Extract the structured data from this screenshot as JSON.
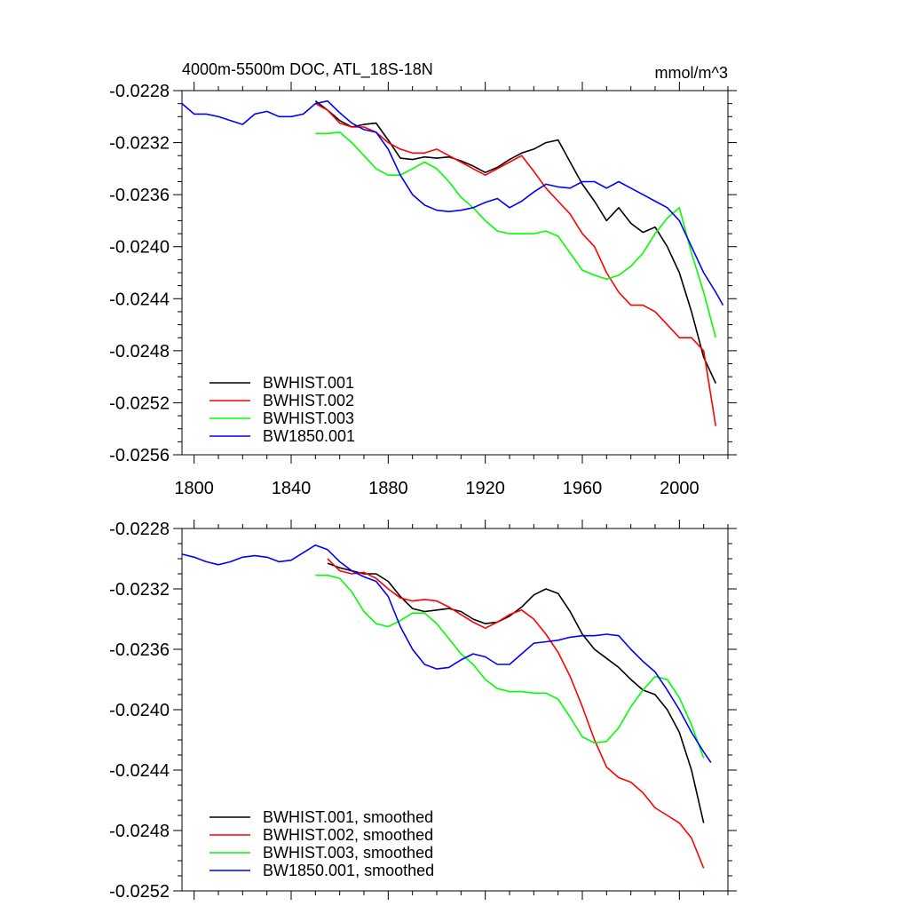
{
  "chart_data": [
    {
      "type": "line",
      "title": "4000m-5500m DOC, ATL_18S-18N",
      "units": "mmol/m^3",
      "xlabel": "",
      "ylabel": "",
      "xlim": [
        1795,
        2020
      ],
      "ylim": [
        -0.0256,
        -0.0228
      ],
      "xticks": [
        1800,
        1840,
        1880,
        1920,
        1960,
        2000
      ],
      "yticks": [
        -0.0228,
        -0.0232,
        -0.0236,
        -0.024,
        -0.0244,
        -0.0248,
        -0.0252,
        -0.0256
      ],
      "ytick_labels": [
        "-0.0228",
        "-0.0232",
        "-0.0236",
        "-0.0240",
        "-0.0244",
        "-0.0248",
        "-0.0252",
        "-0.0256"
      ],
      "legend_position": "bottom-left",
      "series": [
        {
          "name": "BWHIST.001",
          "color": "#000000",
          "x": [
            1850,
            1855,
            1860,
            1865,
            1870,
            1875,
            1880,
            1885,
            1890,
            1895,
            1900,
            1905,
            1910,
            1915,
            1920,
            1925,
            1930,
            1935,
            1940,
            1945,
            1950,
            1955,
            1960,
            1965,
            1970,
            1975,
            1980,
            1985,
            1990,
            1995,
            2000,
            2005,
            2010,
            2015
          ],
          "y": [
            -0.02288,
            -0.02295,
            -0.02303,
            -0.02308,
            -0.02306,
            -0.02305,
            -0.02318,
            -0.02332,
            -0.02333,
            -0.02331,
            -0.02332,
            -0.02331,
            -0.02334,
            -0.02338,
            -0.02343,
            -0.02339,
            -0.02333,
            -0.02328,
            -0.02325,
            -0.0232,
            -0.02318,
            -0.02335,
            -0.02352,
            -0.02365,
            -0.0238,
            -0.0237,
            -0.02382,
            -0.02389,
            -0.02385,
            -0.024,
            -0.0242,
            -0.0245,
            -0.02485,
            -0.02505
          ]
        },
        {
          "name": "BWHIST.002",
          "color": "#ff0000",
          "x": [
            1850,
            1855,
            1860,
            1865,
            1870,
            1875,
            1880,
            1885,
            1890,
            1895,
            1900,
            1905,
            1910,
            1915,
            1920,
            1925,
            1930,
            1935,
            1940,
            1945,
            1950,
            1955,
            1960,
            1965,
            1970,
            1975,
            1980,
            1985,
            1990,
            1995,
            2000,
            2005,
            2010,
            2015
          ],
          "y": [
            -0.0229,
            -0.02295,
            -0.02305,
            -0.02308,
            -0.02308,
            -0.02312,
            -0.0232,
            -0.02325,
            -0.02328,
            -0.02328,
            -0.02325,
            -0.0233,
            -0.02335,
            -0.0234,
            -0.02345,
            -0.0234,
            -0.02335,
            -0.0233,
            -0.02342,
            -0.02355,
            -0.02365,
            -0.02375,
            -0.0239,
            -0.024,
            -0.0242,
            -0.02435,
            -0.02445,
            -0.02445,
            -0.0245,
            -0.0246,
            -0.0247,
            -0.0247,
            -0.0248,
            -0.02538
          ]
        },
        {
          "name": "BWHIST.003",
          "color": "#00ff00",
          "x": [
            1850,
            1855,
            1860,
            1865,
            1870,
            1875,
            1880,
            1885,
            1890,
            1895,
            1900,
            1905,
            1910,
            1915,
            1920,
            1925,
            1930,
            1935,
            1940,
            1945,
            1950,
            1955,
            1960,
            1965,
            1970,
            1975,
            1980,
            1985,
            1990,
            1995,
            2000,
            2005,
            2010,
            2015
          ],
          "y": [
            -0.02313,
            -0.02313,
            -0.02312,
            -0.0232,
            -0.0233,
            -0.0234,
            -0.02345,
            -0.02345,
            -0.0234,
            -0.02335,
            -0.0234,
            -0.0235,
            -0.02362,
            -0.0237,
            -0.0238,
            -0.02388,
            -0.0239,
            -0.0239,
            -0.0239,
            -0.02388,
            -0.02392,
            -0.02405,
            -0.02418,
            -0.02422,
            -0.02425,
            -0.02422,
            -0.02415,
            -0.02405,
            -0.0239,
            -0.02378,
            -0.0237,
            -0.02405,
            -0.02435,
            -0.0247
          ]
        },
        {
          "name": "BW1850.001",
          "color": "#0000ff",
          "x": [
            1795,
            1800,
            1805,
            1810,
            1815,
            1820,
            1825,
            1830,
            1835,
            1840,
            1845,
            1850,
            1855,
            1860,
            1865,
            1870,
            1875,
            1880,
            1885,
            1890,
            1895,
            1900,
            1905,
            1910,
            1915,
            1920,
            1925,
            1930,
            1935,
            1940,
            1945,
            1950,
            1955,
            1960,
            1965,
            1970,
            1975,
            1980,
            1985,
            1990,
            1995,
            2000,
            2005,
            2010,
            2015,
            2018
          ],
          "y": [
            -0.0229,
            -0.02298,
            -0.02298,
            -0.023,
            -0.02303,
            -0.02306,
            -0.02298,
            -0.02296,
            -0.023,
            -0.023,
            -0.02298,
            -0.0229,
            -0.02288,
            -0.02297,
            -0.02305,
            -0.0231,
            -0.02312,
            -0.02325,
            -0.02345,
            -0.0236,
            -0.02368,
            -0.02372,
            -0.02373,
            -0.02372,
            -0.0237,
            -0.02366,
            -0.02363,
            -0.0237,
            -0.02365,
            -0.02358,
            -0.02352,
            -0.02354,
            -0.02355,
            -0.0235,
            -0.0235,
            -0.02355,
            -0.0235,
            -0.02355,
            -0.0236,
            -0.02365,
            -0.0237,
            -0.0238,
            -0.024,
            -0.0242,
            -0.02435,
            -0.02445
          ]
        }
      ]
    },
    {
      "type": "line",
      "title": "",
      "units": "",
      "xlabel": "",
      "ylabel": "",
      "xlim": [
        1795,
        2020
      ],
      "ylim": [
        -0.0252,
        -0.0228
      ],
      "xticks": [
        1800,
        1840,
        1880,
        1920,
        1960,
        2000
      ],
      "yticks": [
        -0.0228,
        -0.0232,
        -0.0236,
        -0.024,
        -0.0244,
        -0.0248,
        -0.0252
      ],
      "ytick_labels": [
        "-0.0228",
        "-0.0232",
        "-0.0236",
        "-0.0240",
        "-0.0244",
        "-0.0248",
        "-0.0252"
      ],
      "legend_position": "bottom-left",
      "series": [
        {
          "name": "BWHIST.001, smoothed",
          "color": "#000000",
          "x": [
            1855,
            1860,
            1865,
            1870,
            1875,
            1880,
            1885,
            1890,
            1895,
            1900,
            1905,
            1910,
            1915,
            1920,
            1925,
            1930,
            1935,
            1940,
            1945,
            1950,
            1955,
            1960,
            1965,
            1970,
            1975,
            1980,
            1985,
            1990,
            1995,
            2000,
            2005,
            2010
          ],
          "y": [
            -0.02303,
            -0.02306,
            -0.02308,
            -0.0231,
            -0.0231,
            -0.02315,
            -0.02325,
            -0.02333,
            -0.02335,
            -0.02334,
            -0.02333,
            -0.02335,
            -0.0234,
            -0.02343,
            -0.02342,
            -0.02338,
            -0.02332,
            -0.02324,
            -0.0232,
            -0.02323,
            -0.02335,
            -0.0235,
            -0.0236,
            -0.02366,
            -0.02372,
            -0.0238,
            -0.02387,
            -0.0239,
            -0.024,
            -0.02415,
            -0.0244,
            -0.02475
          ]
        },
        {
          "name": "BWHIST.002, smoothed",
          "color": "#ff0000",
          "x": [
            1855,
            1860,
            1865,
            1870,
            1875,
            1880,
            1885,
            1890,
            1895,
            1900,
            1905,
            1910,
            1915,
            1920,
            1925,
            1930,
            1935,
            1940,
            1945,
            1950,
            1955,
            1960,
            1965,
            1970,
            1975,
            1980,
            1985,
            1990,
            1995,
            2000,
            2005,
            2010
          ],
          "y": [
            -0.023,
            -0.02308,
            -0.0231,
            -0.02309,
            -0.02313,
            -0.0232,
            -0.02326,
            -0.02328,
            -0.02327,
            -0.02328,
            -0.02332,
            -0.02337,
            -0.02342,
            -0.02346,
            -0.02342,
            -0.02337,
            -0.02334,
            -0.0234,
            -0.0235,
            -0.02362,
            -0.02378,
            -0.02398,
            -0.0242,
            -0.02438,
            -0.02445,
            -0.02448,
            -0.02455,
            -0.02465,
            -0.0247,
            -0.02475,
            -0.02485,
            -0.02505
          ]
        },
        {
          "name": "BWHIST.003, smoothed",
          "color": "#00ff00",
          "x": [
            1850,
            1855,
            1860,
            1865,
            1870,
            1875,
            1880,
            1885,
            1890,
            1895,
            1900,
            1905,
            1910,
            1915,
            1920,
            1925,
            1930,
            1935,
            1940,
            1945,
            1950,
            1955,
            1960,
            1965,
            1970,
            1975,
            1980,
            1985,
            1990,
            1995,
            2000,
            2005,
            2010
          ],
          "y": [
            -0.02311,
            -0.02311,
            -0.02313,
            -0.02322,
            -0.02335,
            -0.02343,
            -0.02345,
            -0.02341,
            -0.02336,
            -0.02336,
            -0.02343,
            -0.02353,
            -0.02363,
            -0.0237,
            -0.0238,
            -0.02386,
            -0.02388,
            -0.02388,
            -0.02389,
            -0.02389,
            -0.02393,
            -0.02405,
            -0.02418,
            -0.02422,
            -0.02421,
            -0.02412,
            -0.02398,
            -0.02387,
            -0.02378,
            -0.0238,
            -0.02392,
            -0.0241,
            -0.02432
          ]
        },
        {
          "name": "BW1850.001, smoothed",
          "color": "#0000ff",
          "x": [
            1795,
            1800,
            1805,
            1810,
            1815,
            1820,
            1825,
            1830,
            1835,
            1840,
            1845,
            1850,
            1855,
            1860,
            1865,
            1870,
            1875,
            1880,
            1885,
            1890,
            1895,
            1900,
            1905,
            1910,
            1915,
            1920,
            1925,
            1930,
            1935,
            1940,
            1945,
            1950,
            1955,
            1960,
            1965,
            1970,
            1975,
            1980,
            1985,
            1990,
            1995,
            2000,
            2005,
            2010,
            2013
          ],
          "y": [
            -0.02297,
            -0.02299,
            -0.02302,
            -0.02304,
            -0.02302,
            -0.02299,
            -0.02298,
            -0.02299,
            -0.02302,
            -0.02301,
            -0.02296,
            -0.02291,
            -0.02294,
            -0.02302,
            -0.02308,
            -0.02312,
            -0.02315,
            -0.02325,
            -0.02345,
            -0.0236,
            -0.0237,
            -0.02373,
            -0.02372,
            -0.02367,
            -0.02363,
            -0.02365,
            -0.0237,
            -0.0237,
            -0.02363,
            -0.02356,
            -0.02355,
            -0.02354,
            -0.02352,
            -0.02351,
            -0.02351,
            -0.0235,
            -0.02351,
            -0.0236,
            -0.02368,
            -0.02375,
            -0.02387,
            -0.024,
            -0.02415,
            -0.02428,
            -0.02435
          ]
        }
      ]
    }
  ]
}
